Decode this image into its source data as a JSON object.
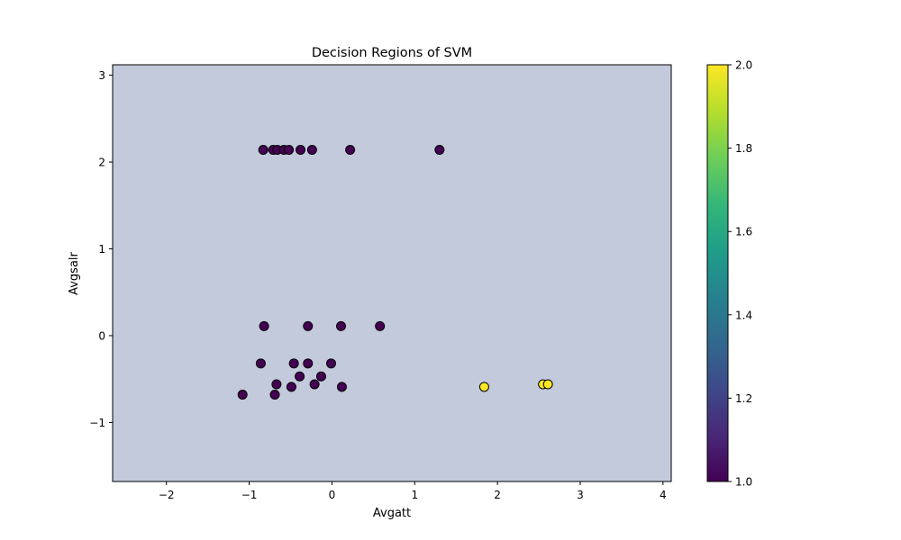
{
  "chart_data": {
    "type": "scatter",
    "title": "Decision Regions of SVM",
    "xlabel": "Avgatt",
    "ylabel": "Avgsalr",
    "xlim": [
      -2.65,
      4.1
    ],
    "ylim": [
      -1.68,
      3.12
    ],
    "xticks": [
      -2,
      -1,
      0,
      1,
      2,
      3,
      4
    ],
    "yticks": [
      -1,
      0,
      1,
      2,
      3
    ],
    "tick_labels_x": [
      "−2",
      "−1",
      "0",
      "1",
      "2",
      "3",
      "4"
    ],
    "tick_labels_y": [
      "−1",
      "0",
      "1",
      "2",
      "3"
    ],
    "grid": false,
    "background_region_color": "#c3cadb",
    "decision_region_class": 1,
    "colorbar": {
      "min": 1.0,
      "max": 2.0,
      "ticks": [
        1.0,
        1.2,
        1.4,
        1.6,
        1.8,
        2.0
      ],
      "tick_labels": [
        "1.0",
        "1.2",
        "1.4",
        "1.6",
        "1.8",
        "2.0"
      ],
      "colormap": "viridis",
      "stops": [
        "#440154",
        "#482878",
        "#3e4989",
        "#31688e",
        "#26828e",
        "#1f9e89",
        "#35b779",
        "#6ece58",
        "#b5de2b",
        "#fde725"
      ]
    },
    "class_colors": {
      "1": "#440154",
      "2": "#fde725"
    },
    "points": [
      {
        "x": -0.83,
        "y": 2.14,
        "class": 1
      },
      {
        "x": -0.71,
        "y": 2.14,
        "class": 1
      },
      {
        "x": -0.66,
        "y": 2.14,
        "class": 1
      },
      {
        "x": -0.58,
        "y": 2.14,
        "class": 1
      },
      {
        "x": -0.52,
        "y": 2.14,
        "class": 1
      },
      {
        "x": -0.38,
        "y": 2.14,
        "class": 1
      },
      {
        "x": -0.24,
        "y": 2.14,
        "class": 1
      },
      {
        "x": 0.22,
        "y": 2.14,
        "class": 1
      },
      {
        "x": 1.3,
        "y": 2.14,
        "class": 1
      },
      {
        "x": -0.82,
        "y": 0.11,
        "class": 1
      },
      {
        "x": -0.29,
        "y": 0.11,
        "class": 1
      },
      {
        "x": 0.11,
        "y": 0.11,
        "class": 1
      },
      {
        "x": 0.58,
        "y": 0.11,
        "class": 1
      },
      {
        "x": -0.86,
        "y": -0.32,
        "class": 1
      },
      {
        "x": -0.46,
        "y": -0.32,
        "class": 1
      },
      {
        "x": -0.29,
        "y": -0.32,
        "class": 1
      },
      {
        "x": -0.01,
        "y": -0.32,
        "class": 1
      },
      {
        "x": -0.39,
        "y": -0.47,
        "class": 1
      },
      {
        "x": -0.13,
        "y": -0.47,
        "class": 1
      },
      {
        "x": -0.67,
        "y": -0.56,
        "class": 1
      },
      {
        "x": -0.21,
        "y": -0.56,
        "class": 1
      },
      {
        "x": -0.49,
        "y": -0.59,
        "class": 1
      },
      {
        "x": 0.12,
        "y": -0.59,
        "class": 1
      },
      {
        "x": -1.08,
        "y": -0.68,
        "class": 1
      },
      {
        "x": -0.69,
        "y": -0.68,
        "class": 1
      },
      {
        "x": 1.84,
        "y": -0.59,
        "class": 2
      },
      {
        "x": 2.55,
        "y": -0.56,
        "class": 2
      },
      {
        "x": 2.61,
        "y": -0.56,
        "class": 2
      }
    ]
  }
}
